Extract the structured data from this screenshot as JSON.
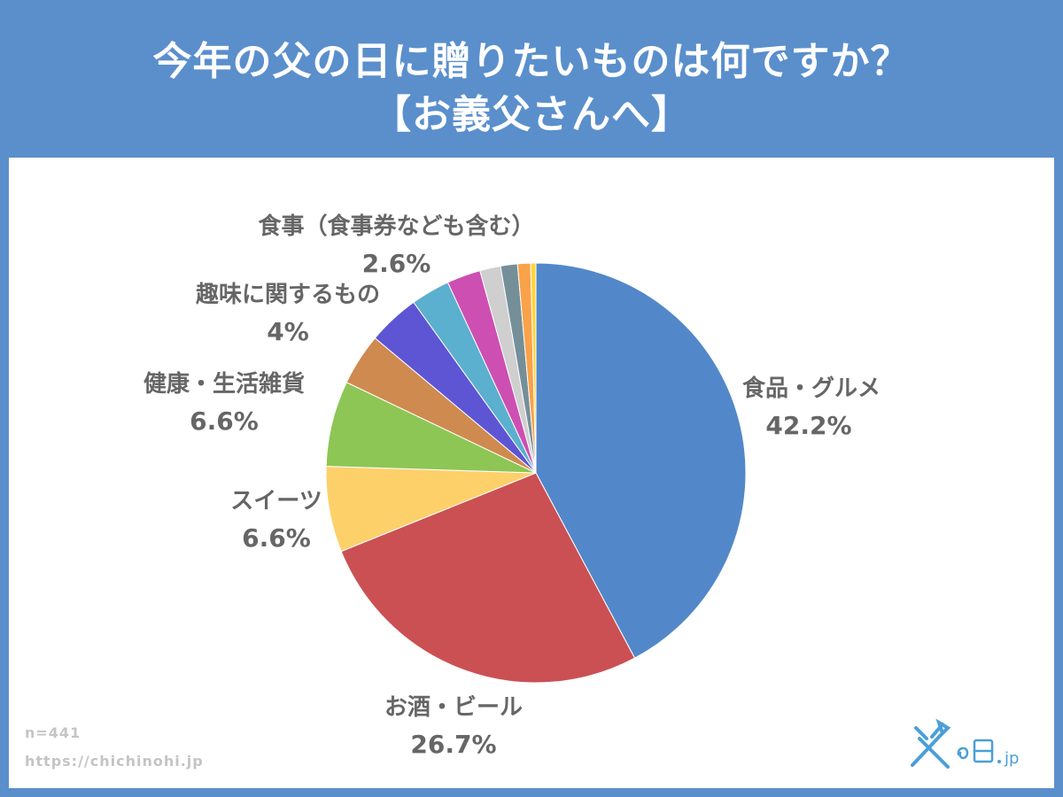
{
  "title": {
    "line1": "今年の父の日に贈りたいものは何ですか？",
    "line2": "【お義父さんへ】"
  },
  "footer": {
    "sample_size": "n=441",
    "url": "https://chichinohi.jp"
  },
  "logo": {
    "text": "父の日.jp"
  },
  "chart_data": {
    "type": "pie",
    "title": "今年の父の日に贈りたいものは何ですか？【お義父さんへ】",
    "start": "12 o'clock",
    "direction": "clockwise",
    "slices": [
      {
        "label": "食品・グルメ",
        "value": 42.2,
        "value_label": "42.2%",
        "color": "#5288c9"
      },
      {
        "label": "お酒・ビール",
        "value": 26.7,
        "value_label": "26.7%",
        "color": "#cb5053"
      },
      {
        "label": "スイーツ",
        "value": 6.6,
        "value_label": "6.6%",
        "color": "#fdd06a"
      },
      {
        "label": "健康・生活雑貨",
        "value": 6.6,
        "value_label": "6.6%",
        "color": "#8dc655"
      },
      {
        "label": "",
        "value": 4.0,
        "value_label": "",
        "color": "#cf8a4f"
      },
      {
        "label": "趣味に関するもの",
        "value": 4.0,
        "value_label": "4%",
        "color": "#5d55d3"
      },
      {
        "label": "",
        "value": 3.0,
        "value_label": "",
        "color": "#5bb0cf"
      },
      {
        "label": "食事（食事券なども含む）",
        "value": 2.6,
        "value_label": "2.6%",
        "color": "#cd4fb2"
      },
      {
        "label": "",
        "value": 1.6,
        "value_label": "",
        "color": "#cfcfcf"
      },
      {
        "label": "",
        "value": 1.3,
        "value_label": "",
        "color": "#758f99"
      },
      {
        "label": "",
        "value": 1.0,
        "value_label": "",
        "color": "#f9a24a"
      },
      {
        "label": "",
        "value": 0.4,
        "value_label": "",
        "color": "#ffd43a"
      }
    ]
  }
}
